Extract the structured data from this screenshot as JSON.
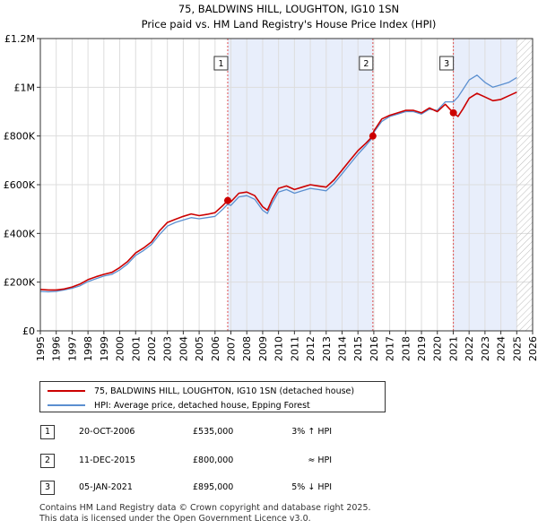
{
  "chart_data": {
    "type": "line",
    "title": "75, BALDWINS HILL, LOUGHTON, IG10 1SN",
    "subtitle": "Price paid vs. HM Land Registry's House Price Index (HPI)",
    "xlim": [
      1995,
      2026
    ],
    "ylim": [
      0,
      1200000
    ],
    "x_ticks": [
      1995,
      1996,
      1997,
      1998,
      1999,
      2000,
      2001,
      2002,
      2003,
      2004,
      2005,
      2006,
      2007,
      2008,
      2009,
      2010,
      2011,
      2012,
      2013,
      2014,
      2015,
      2016,
      2017,
      2018,
      2019,
      2020,
      2021,
      2022,
      2023,
      2024,
      2025,
      2026
    ],
    "y_ticks": [
      {
        "value": 0,
        "label": "£0"
      },
      {
        "value": 200000,
        "label": "£200K"
      },
      {
        "value": 400000,
        "label": "£400K"
      },
      {
        "value": 600000,
        "label": "£600K"
      },
      {
        "value": 800000,
        "label": "£800K"
      },
      {
        "value": 1000000,
        "label": "£1M"
      },
      {
        "value": 1200000,
        "label": "£1.2M"
      }
    ],
    "shaded_ranges": [
      [
        2006.8,
        2015.94
      ],
      [
        2021.01,
        2025.0
      ]
    ],
    "hatched_from": 2025.0,
    "series": [
      {
        "name": "75, BALDWINS HILL, LOUGHTON, IG10 1SN (detached house)",
        "color": "#cc0000",
        "x": [
          1995.0,
          1995.5,
          1996.0,
          1996.5,
          1997.0,
          1997.5,
          1998.0,
          1998.5,
          1999.0,
          1999.5,
          2000.0,
          2000.5,
          2001.0,
          2001.5,
          2002.0,
          2002.5,
          2003.0,
          2003.5,
          2004.0,
          2004.5,
          2005.0,
          2005.5,
          2006.0,
          2006.5,
          2006.8,
          2007.0,
          2007.5,
          2008.0,
          2008.5,
          2009.0,
          2009.3,
          2009.6,
          2010.0,
          2010.5,
          2011.0,
          2011.5,
          2012.0,
          2012.5,
          2013.0,
          2013.5,
          2014.0,
          2014.5,
          2015.0,
          2015.5,
          2015.94,
          2016.0,
          2016.5,
          2017.0,
          2017.5,
          2018.0,
          2018.5,
          2019.0,
          2019.5,
          2020.0,
          2020.5,
          2021.01,
          2021.3,
          2021.6,
          2022.0,
          2022.5,
          2023.0,
          2023.5,
          2024.0,
          2024.5,
          2025.0
        ],
        "y": [
          170000,
          168000,
          168000,
          172000,
          180000,
          192000,
          210000,
          222000,
          232000,
          240000,
          260000,
          285000,
          320000,
          340000,
          365000,
          410000,
          445000,
          458000,
          470000,
          480000,
          473000,
          478000,
          485000,
          515000,
          535000,
          530000,
          565000,
          570000,
          555000,
          510000,
          495000,
          540000,
          585000,
          595000,
          580000,
          590000,
          600000,
          595000,
          590000,
          620000,
          660000,
          700000,
          740000,
          770000,
          800000,
          820000,
          870000,
          885000,
          895000,
          905000,
          905000,
          895000,
          915000,
          900000,
          930000,
          895000,
          880000,
          910000,
          955000,
          975000,
          960000,
          945000,
          950000,
          965000,
          980000
        ]
      },
      {
        "name": "HPI: Average price, detached house, Epping Forest",
        "color": "#5b8fd0",
        "x": [
          1995.0,
          1995.5,
          1996.0,
          1996.5,
          1997.0,
          1997.5,
          1998.0,
          1998.5,
          1999.0,
          1999.5,
          2000.0,
          2000.5,
          2001.0,
          2001.5,
          2002.0,
          2002.5,
          2003.0,
          2003.5,
          2004.0,
          2004.5,
          2005.0,
          2005.5,
          2006.0,
          2006.5,
          2006.8,
          2007.0,
          2007.5,
          2008.0,
          2008.5,
          2009.0,
          2009.3,
          2009.6,
          2010.0,
          2010.5,
          2011.0,
          2011.5,
          2012.0,
          2012.5,
          2013.0,
          2013.5,
          2014.0,
          2014.5,
          2015.0,
          2015.5,
          2015.94,
          2016.0,
          2016.5,
          2017.0,
          2017.5,
          2018.0,
          2018.5,
          2019.0,
          2019.5,
          2020.0,
          2020.5,
          2021.01,
          2021.3,
          2021.6,
          2022.0,
          2022.5,
          2023.0,
          2023.5,
          2024.0,
          2024.5,
          2025.0
        ],
        "y": [
          162000,
          160000,
          162000,
          168000,
          175000,
          185000,
          202000,
          214000,
          225000,
          232000,
          250000,
          275000,
          310000,
          330000,
          355000,
          395000,
          430000,
          445000,
          455000,
          465000,
          460000,
          465000,
          470000,
          500000,
          520000,
          515000,
          550000,
          555000,
          540000,
          495000,
          482000,
          525000,
          570000,
          580000,
          565000,
          575000,
          585000,
          580000,
          575000,
          605000,
          645000,
          685000,
          725000,
          760000,
          795000,
          815000,
          860000,
          880000,
          890000,
          900000,
          900000,
          890000,
          910000,
          905000,
          940000,
          940000,
          960000,
          990000,
          1030000,
          1050000,
          1020000,
          1000000,
          1010000,
          1020000,
          1040000
        ]
      }
    ],
    "sales": [
      {
        "label": "1",
        "x": 2006.8,
        "y": 535000,
        "date": "20-OCT-2006",
        "price": "£535,000",
        "hpi": "3% ↑ HPI"
      },
      {
        "label": "2",
        "x": 2015.94,
        "y": 800000,
        "date": "11-DEC-2015",
        "price": "£800,000",
        "hpi": "≈ HPI"
      },
      {
        "label": "3",
        "x": 2021.01,
        "y": 895000,
        "date": "05-JAN-2021",
        "price": "£895,000",
        "hpi": "5% ↓ HPI"
      }
    ]
  },
  "legend": {
    "property_label": "75, BALDWINS HILL, LOUGHTON, IG10 1SN (detached house)",
    "hpi_label": "HPI: Average price, detached house, Epping Forest"
  },
  "colors": {
    "property": "#cc0000",
    "hpi": "#5b8fd0",
    "shade": "#e8eefb"
  },
  "footer": {
    "line1": "Contains HM Land Registry data © Crown copyright and database right 2025.",
    "line2": "This data is licensed under the Open Government Licence v3.0."
  }
}
